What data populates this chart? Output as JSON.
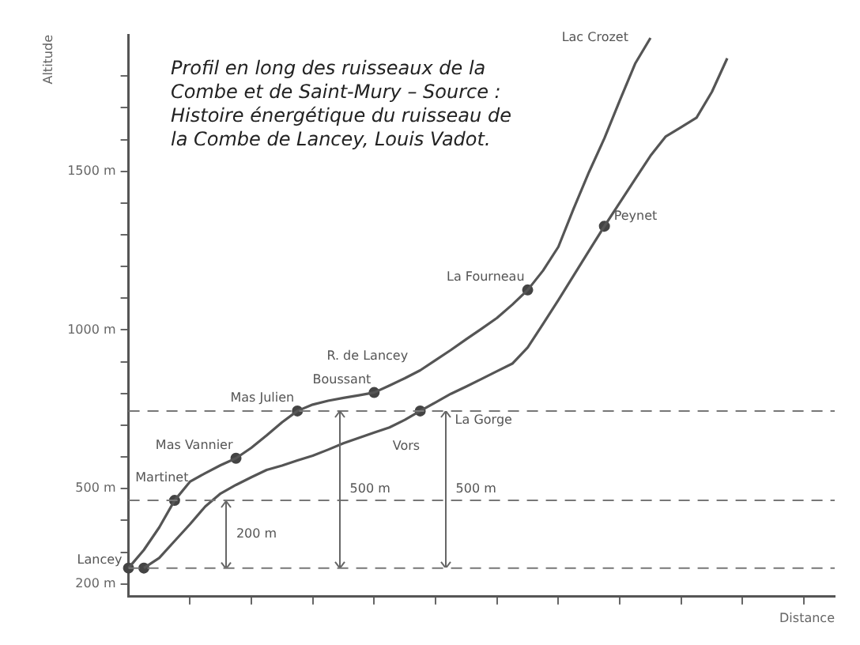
{
  "chart_data": {
    "type": "line",
    "title": "Profil en long des ruisseaux de la Combe et de Saint-Mury – Source : Histoire énergétique du ruisseau de la Combe de Lancey, Louis Vadot.",
    "xlabel": "Distance",
    "ylabel": "Altitude",
    "categories": [
      null,
      null,
      null,
      null,
      null,
      null,
      null,
      null,
      null,
      null,
      null,
      null,
      null,
      null,
      null,
      null,
      null,
      null,
      null,
      null,
      null,
      null,
      null,
      null,
      null,
      null,
      null,
      null,
      null,
      null,
      null,
      null,
      null,
      null,
      null,
      null,
      null,
      null,
      null,
      null,
      null,
      null,
      null,
      null,
      null,
      null,
      null
    ],
    "ylim": [
      160,
      1930
    ],
    "yticks": [
      {
        "value": 200,
        "label": "200 m"
      },
      {
        "value": 300,
        "label": null
      },
      {
        "value": 400,
        "label": null
      },
      {
        "value": 500,
        "label": "500 m"
      },
      {
        "value": 600,
        "label": null
      },
      {
        "value": 700,
        "label": null
      },
      {
        "value": 800,
        "label": null
      },
      {
        "value": 900,
        "label": null
      },
      {
        "value": 1000,
        "label": "1000 m"
      },
      {
        "value": 1100,
        "label": null
      },
      {
        "value": 1200,
        "label": null
      },
      {
        "value": 1300,
        "label": null
      },
      {
        "value": 1400,
        "label": null
      },
      {
        "value": 1500,
        "label": "1500 m"
      },
      {
        "value": 1600,
        "label": null
      },
      {
        "value": 1700,
        "label": null
      },
      {
        "value": 1800,
        "label": null
      }
    ],
    "tick_labels": "y",
    "grid": false,
    "legend": false,
    "marker": "none",
    "line_style": "solid",
    "series": [
      {
        "name": "R. de Lancey",
        "color": "#555555",
        "values": [
          250,
          307,
          378,
          463,
          522,
          549,
          574,
          596,
          629,
          668,
          709,
          745,
          765,
          777,
          786,
          794,
          803,
          825,
          848,
          873,
          905,
          937,
          971,
          1004,
          1038,
          1080,
          1126,
          1187,
          1262,
          1383,
          1498,
          1604,
          1723,
          1839,
          1920,
          null,
          null,
          null,
          null,
          null,
          null,
          null,
          null,
          null,
          null,
          null,
          null
        ]
      },
      {
        "name": "Vors",
        "color": "#555555",
        "values": [
          null,
          250,
          282,
          335,
          388,
          444,
          485,
          512,
          536,
          559,
          573,
          589,
          604,
          623,
          643,
          660,
          677,
          693,
          717,
          745,
          772,
          799,
          822,
          846,
          870,
          894,
          945,
          1019,
          1094,
          1172,
          1250,
          1327,
          1401,
          1475,
          1549,
          1610,
          1639,
          1669,
          1750,
          1856,
          null,
          null,
          null,
          null,
          null,
          null,
          null
        ]
      },
      {
        "type": "scatter",
        "marker": "circle",
        "color": "#444444",
        "values": [
          250,
          250,
          null,
          463,
          null,
          null,
          null,
          596,
          null,
          null,
          null,
          745,
          null,
          null,
          null,
          null,
          803,
          null,
          null,
          745,
          null,
          null,
          null,
          null,
          null,
          null,
          1126,
          null,
          null,
          null,
          null,
          1327,
          null,
          null,
          null,
          null,
          null,
          null,
          null,
          null,
          null,
          null,
          null,
          null,
          null,
          null,
          null
        ]
      }
    ],
    "ref_lines": [
      {
        "axis": "y",
        "value": 250,
        "line_style": "dashed",
        "color": "#777777"
      },
      {
        "axis": "y",
        "value": 463,
        "line_style": "dashed",
        "color": "#777777"
      },
      {
        "axis": "y",
        "value": 745,
        "line_style": "dashed",
        "color": "#777777"
      }
    ],
    "annotations": [
      "Lancey",
      "Martinet",
      "Mas Vannier",
      "Mas Julien",
      "Boussant",
      "La Fourneau",
      "Lac Crozet",
      "La Gorge",
      "Peynet",
      "200 m",
      "500 m",
      "500 m"
    ]
  }
}
